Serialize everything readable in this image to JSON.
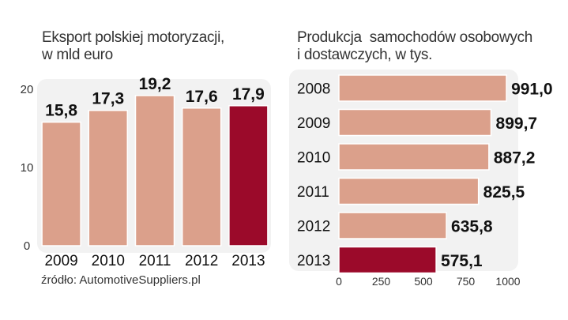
{
  "colors": {
    "bar_fill": "#dba08b",
    "bar_highlight": "#9b0a2a",
    "bar_stroke": "#ffffff",
    "panel_bg": "#f2f2f2"
  },
  "source": "źródło: AutomotiveSuppliers.pl",
  "chart_data": [
    {
      "type": "bar",
      "title": "Eksport polskiej motoryzacji,",
      "subtitle": "w mld euro",
      "categories": [
        "2009",
        "2010",
        "2011",
        "2012",
        "2013"
      ],
      "values": [
        15.8,
        17.3,
        19.2,
        17.6,
        17.9
      ],
      "value_labels": [
        "15,8",
        "17,3",
        "19,2",
        "17,6",
        "17,9"
      ],
      "highlight": "2013",
      "yticks": [
        "0",
        "10",
        "20"
      ],
      "ytick_values": [
        0,
        10,
        20
      ],
      "ylim": [
        0,
        20
      ],
      "grid": false
    },
    {
      "type": "bar",
      "orientation": "horizontal",
      "title": "Produkcja  samochodów osobowych",
      "subtitle": "i dostawczych, w tys.",
      "categories": [
        "2008",
        "2009",
        "2010",
        "2011",
        "2012",
        "2013"
      ],
      "values": [
        991.0,
        899.7,
        887.2,
        825.5,
        635.8,
        575.1
      ],
      "value_labels": [
        "991,0",
        "899,7",
        "887,2",
        "825,5",
        "635,8",
        "575,1"
      ],
      "highlight": "2013",
      "xticks": [
        "0",
        "250",
        "500",
        "750",
        "1000"
      ],
      "xtick_values": [
        0,
        250,
        500,
        750,
        1000
      ],
      "xlim": [
        0,
        1000
      ],
      "grid": false
    }
  ]
}
